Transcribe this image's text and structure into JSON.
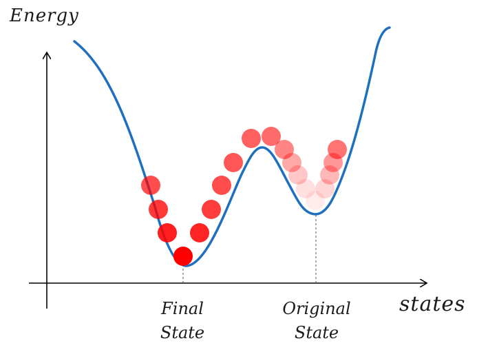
{
  "axes": {
    "y_label": "Energy",
    "x_label": "states",
    "axis_color": "#000000"
  },
  "curve": {
    "name": "energy landscape",
    "color": "#1f6fbf"
  },
  "states": [
    {
      "line1": "Final",
      "line2": "State"
    },
    {
      "line1": "Original",
      "line2": "State"
    }
  ],
  "ball_color": "#ff0000"
}
